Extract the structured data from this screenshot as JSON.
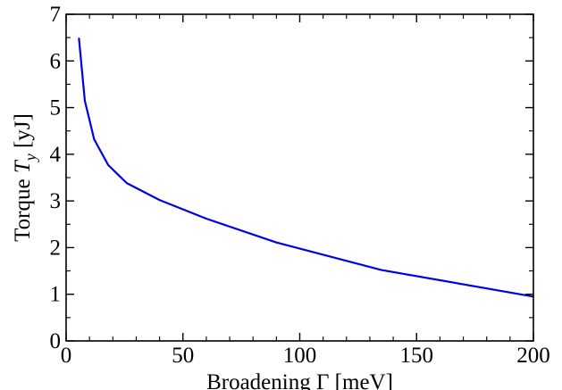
{
  "chart_data": {
    "type": "line",
    "title": "",
    "xlabel": "Broadening Γ [meV]",
    "ylabel": {
      "prefix": "Torque ",
      "symbol": "T",
      "subscript": "y",
      "suffix": " [yJ]"
    },
    "xlim": [
      0,
      200
    ],
    "ylim": [
      0,
      7
    ],
    "x_ticks": [
      0,
      50,
      100,
      150,
      200
    ],
    "y_ticks": [
      0,
      1,
      2,
      3,
      4,
      5,
      6,
      7
    ],
    "x_tick_labels": [
      "0",
      "50",
      "100",
      "150",
      "200"
    ],
    "y_tick_labels": [
      "0",
      "1",
      "2",
      "3",
      "4",
      "5",
      "6",
      "7"
    ],
    "grid": false,
    "legend": "none",
    "series": [
      {
        "color": "#0000e6",
        "x": [
          5.5,
          8,
          12,
          18,
          26,
          40,
          60,
          90,
          135,
          200
        ],
        "y": [
          6.48,
          5.15,
          4.32,
          3.77,
          3.38,
          3.02,
          2.62,
          2.11,
          1.52,
          0.95
        ]
      }
    ]
  }
}
